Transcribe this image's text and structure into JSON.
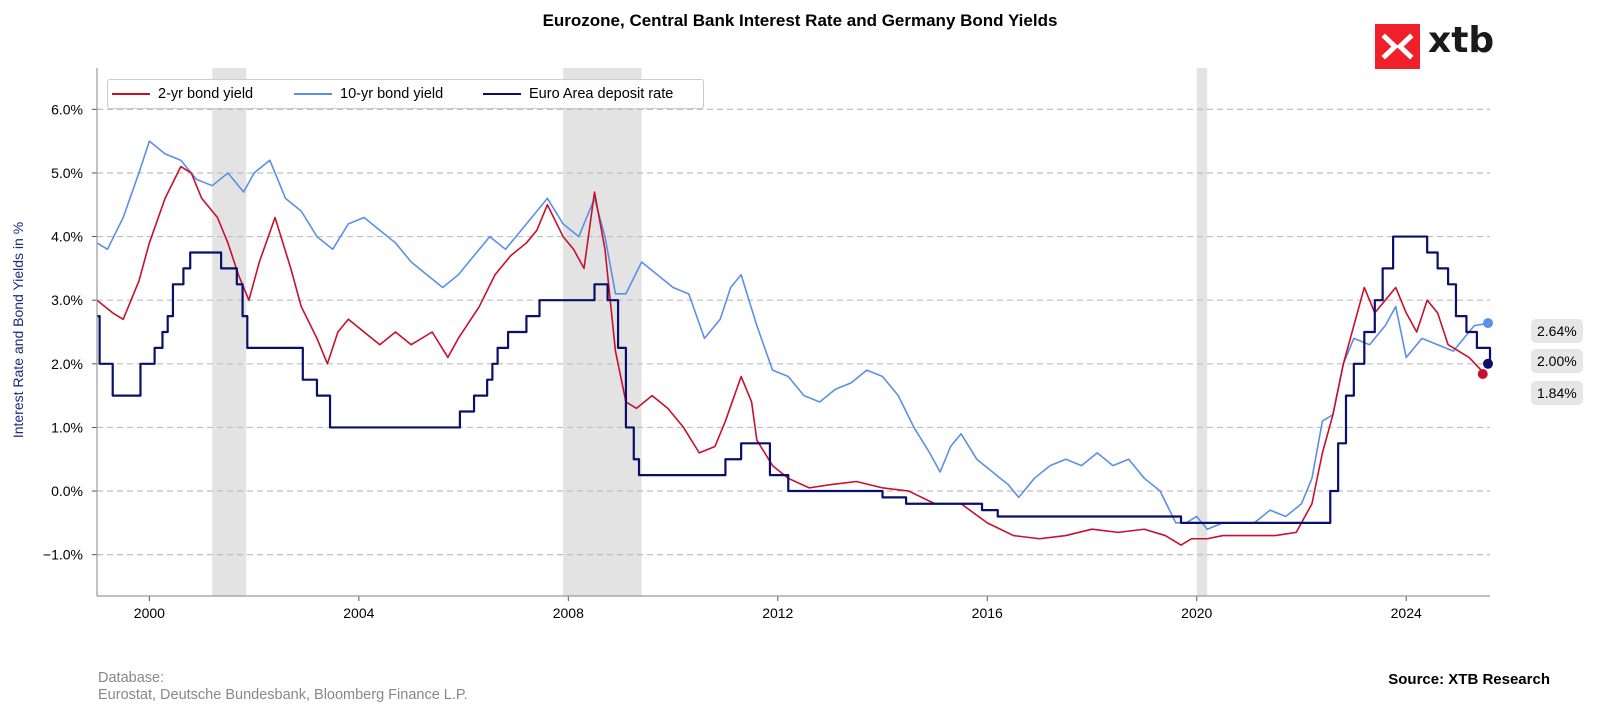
{
  "title": "Eurozone, Central Bank Interest Rate and Germany Bond Yields",
  "logo": {
    "text": "xtb",
    "color": "#f0202b"
  },
  "footer": {
    "database_label": "Database:",
    "database_sources": "Eurostat, Deutsche Bundesbank, Bloomberg Finance L.P.",
    "source": "Source: XTB Research"
  },
  "end_labels": {
    "ten_yr": "2.64%",
    "deposit": "2.00%",
    "two_yr": "1.84%"
  },
  "chart_data": {
    "type": "line",
    "title": "Eurozone, Central Bank Interest Rate and Germany Bond Yields",
    "xlabel": "",
    "ylabel": "Interest Rate and Bond Yields in %",
    "xlim": [
      1999.0,
      2025.6
    ],
    "ylim": [
      -1.65,
      6.65
    ],
    "x_ticks": [
      2000,
      2004,
      2008,
      2012,
      2016,
      2020,
      2024
    ],
    "x_tick_labels": [
      "2000",
      "2004",
      "2008",
      "2012",
      "2016",
      "2020",
      "2024"
    ],
    "y_ticks": [
      -1.0,
      0.0,
      1.0,
      2.0,
      3.0,
      4.0,
      5.0,
      6.0
    ],
    "y_tick_labels": [
      "−1.0%",
      "0.0%",
      "1.0%",
      "2.0%",
      "3.0%",
      "4.0%",
      "5.0%",
      "6.0%"
    ],
    "grid": "horizontal dashed",
    "legend_position": "top-left",
    "recession_shading": [
      [
        2001.2,
        2001.85
      ],
      [
        2007.9,
        2009.4
      ],
      [
        2020.0,
        2020.2
      ]
    ],
    "series": [
      {
        "name": "2-yr bond yield",
        "color": "#c8102e",
        "x": [
          1999.0,
          1999.3,
          1999.5,
          1999.8,
          2000.0,
          2000.3,
          2000.6,
          2000.8,
          2001.0,
          2001.3,
          2001.5,
          2001.7,
          2001.9,
          2002.1,
          2002.4,
          2002.7,
          2002.9,
          2003.2,
          2003.4,
          2003.6,
          2003.8,
          2004.1,
          2004.4,
          2004.7,
          2005.0,
          2005.4,
          2005.7,
          2005.9,
          2006.3,
          2006.6,
          2006.9,
          2007.2,
          2007.4,
          2007.6,
          2007.9,
          2008.1,
          2008.3,
          2008.5,
          2008.7,
          2008.9,
          2009.1,
          2009.3,
          2009.6,
          2009.9,
          2010.2,
          2010.5,
          2010.8,
          2011.0,
          2011.3,
          2011.5,
          2011.6,
          2011.9,
          2012.2,
          2012.6,
          2013.0,
          2013.5,
          2014.0,
          2014.5,
          2015.0,
          2015.5,
          2016.0,
          2016.5,
          2017.0,
          2017.5,
          2018.0,
          2018.5,
          2019.0,
          2019.4,
          2019.7,
          2019.9,
          2020.2,
          2020.5,
          2021.0,
          2021.5,
          2021.9,
          2022.2,
          2022.4,
          2022.6,
          2022.8,
          2023.0,
          2023.2,
          2023.4,
          2023.6,
          2023.8,
          2024.0,
          2024.2,
          2024.4,
          2024.6,
          2024.8,
          2025.0,
          2025.2,
          2025.5
        ],
        "values": [
          3.0,
          2.8,
          2.7,
          3.3,
          3.9,
          4.6,
          5.1,
          5.0,
          4.6,
          4.3,
          3.9,
          3.4,
          3.0,
          3.6,
          4.3,
          3.5,
          2.9,
          2.4,
          2.0,
          2.5,
          2.7,
          2.5,
          2.3,
          2.5,
          2.3,
          2.5,
          2.1,
          2.4,
          2.9,
          3.4,
          3.7,
          3.9,
          4.1,
          4.5,
          4.0,
          3.8,
          3.5,
          4.7,
          3.8,
          2.2,
          1.4,
          1.3,
          1.5,
          1.3,
          1.0,
          0.6,
          0.7,
          1.1,
          1.8,
          1.4,
          0.8,
          0.4,
          0.2,
          0.05,
          0.1,
          0.15,
          0.05,
          0.0,
          -0.2,
          -0.2,
          -0.5,
          -0.7,
          -0.75,
          -0.7,
          -0.6,
          -0.65,
          -0.6,
          -0.7,
          -0.85,
          -0.75,
          -0.75,
          -0.7,
          -0.7,
          -0.7,
          -0.65,
          -0.2,
          0.6,
          1.2,
          2.0,
          2.6,
          3.2,
          2.8,
          3.0,
          3.2,
          2.8,
          2.5,
          3.0,
          2.8,
          2.3,
          2.2,
          2.1,
          1.84
        ]
      },
      {
        "name": "10-yr bond yield",
        "color": "#5b90e6",
        "x": [
          1999.0,
          1999.2,
          1999.5,
          1999.8,
          2000.0,
          2000.3,
          2000.6,
          2000.9,
          2001.2,
          2001.5,
          2001.8,
          2002.0,
          2002.3,
          2002.6,
          2002.9,
          2003.2,
          2003.5,
          2003.8,
          2004.1,
          2004.4,
          2004.7,
          2005.0,
          2005.3,
          2005.6,
          2005.9,
          2006.2,
          2006.5,
          2006.8,
          2007.1,
          2007.4,
          2007.6,
          2007.9,
          2008.2,
          2008.5,
          2008.7,
          2008.9,
          2009.1,
          2009.4,
          2009.7,
          2010.0,
          2010.3,
          2010.6,
          2010.9,
          2011.1,
          2011.3,
          2011.6,
          2011.9,
          2012.2,
          2012.5,
          2012.8,
          2013.1,
          2013.4,
          2013.7,
          2014.0,
          2014.3,
          2014.6,
          2014.9,
          2015.1,
          2015.3,
          2015.5,
          2015.8,
          2016.1,
          2016.4,
          2016.6,
          2016.9,
          2017.2,
          2017.5,
          2017.8,
          2018.1,
          2018.4,
          2018.7,
          2019.0,
          2019.3,
          2019.6,
          2019.8,
          2020.0,
          2020.2,
          2020.5,
          2020.8,
          2021.1,
          2021.4,
          2021.7,
          2022.0,
          2022.2,
          2022.4,
          2022.6,
          2022.8,
          2023.0,
          2023.3,
          2023.6,
          2023.8,
          2024.0,
          2024.3,
          2024.6,
          2024.9,
          2025.1,
          2025.3,
          2025.6
        ],
        "values": [
          3.9,
          3.8,
          4.3,
          5.0,
          5.5,
          5.3,
          5.2,
          4.9,
          4.8,
          5.0,
          4.7,
          5.0,
          5.2,
          4.6,
          4.4,
          4.0,
          3.8,
          4.2,
          4.3,
          4.1,
          3.9,
          3.6,
          3.4,
          3.2,
          3.4,
          3.7,
          4.0,
          3.8,
          4.1,
          4.4,
          4.6,
          4.2,
          4.0,
          4.6,
          4.0,
          3.1,
          3.1,
          3.6,
          3.4,
          3.2,
          3.1,
          2.4,
          2.7,
          3.2,
          3.4,
          2.6,
          1.9,
          1.8,
          1.5,
          1.4,
          1.6,
          1.7,
          1.9,
          1.8,
          1.5,
          1.0,
          0.6,
          0.3,
          0.7,
          0.9,
          0.5,
          0.3,
          0.1,
          -0.1,
          0.2,
          0.4,
          0.5,
          0.4,
          0.6,
          0.4,
          0.5,
          0.2,
          0.0,
          -0.5,
          -0.5,
          -0.4,
          -0.6,
          -0.5,
          -0.5,
          -0.5,
          -0.3,
          -0.4,
          -0.2,
          0.2,
          1.1,
          1.2,
          2.0,
          2.4,
          2.3,
          2.6,
          2.9,
          2.1,
          2.4,
          2.3,
          2.2,
          2.4,
          2.6,
          2.64
        ]
      },
      {
        "name": "Euro Area deposit rate",
        "color": "#0b0f6b",
        "step": true,
        "x": [
          1999.0,
          1999.05,
          1999.3,
          1999.83,
          2000.1,
          2000.25,
          2000.35,
          2000.45,
          2000.65,
          2000.78,
          2001.37,
          2001.67,
          2001.78,
          2001.87,
          2002.93,
          2003.2,
          2003.45,
          2005.93,
          2006.2,
          2006.45,
          2006.55,
          2006.65,
          2006.85,
          2007.2,
          2007.45,
          2008.5,
          2008.75,
          2008.95,
          2009.1,
          2009.25,
          2009.35,
          2011.0,
          2011.3,
          2011.85,
          2012.2,
          2013.0,
          2013.5,
          2014.0,
          2014.45,
          2014.7,
          2015.9,
          2016.2,
          2019.7,
          2022.55,
          2022.7,
          2022.85,
          2023.0,
          2023.2,
          2023.4,
          2023.55,
          2023.75,
          2024.4,
          2024.6,
          2024.8,
          2024.95,
          2025.15,
          2025.35,
          2025.6
        ],
        "values": [
          2.75,
          2.0,
          1.5,
          2.0,
          2.25,
          2.5,
          2.75,
          3.25,
          3.5,
          3.75,
          3.5,
          3.25,
          2.75,
          2.25,
          1.75,
          1.5,
          1.0,
          1.25,
          1.5,
          1.75,
          2.0,
          2.25,
          2.5,
          2.75,
          3.0,
          3.25,
          3.0,
          2.25,
          1.0,
          0.5,
          0.25,
          0.5,
          0.75,
          0.25,
          0.0,
          0.0,
          0.0,
          -0.1,
          -0.2,
          -0.2,
          -0.3,
          -0.4,
          -0.5,
          0.0,
          0.75,
          1.5,
          2.0,
          2.5,
          3.0,
          3.5,
          4.0,
          3.75,
          3.5,
          3.25,
          2.75,
          2.5,
          2.25,
          2.0
        ]
      }
    ]
  }
}
